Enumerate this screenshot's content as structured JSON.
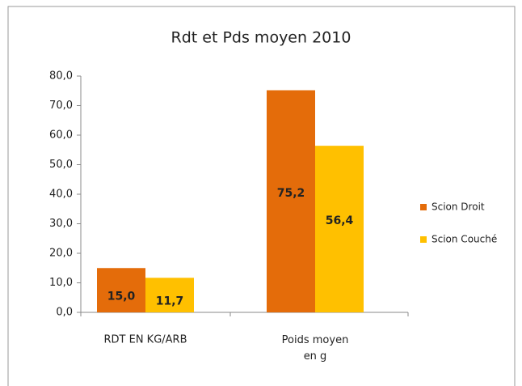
{
  "chart_data": {
    "type": "bar",
    "title": "Rdt et Pds moyen 2010",
    "categories": [
      "RDT EN KG/ARB",
      "Poids moyen en g"
    ],
    "series": [
      {
        "name": "Scion Droit",
        "color": "#e46c0a",
        "values": [
          15.0,
          75.2
        ],
        "value_labels": [
          "15,0",
          "75,2"
        ]
      },
      {
        "name": "Scion Couché",
        "color": "#ffc000",
        "values": [
          11.7,
          56.4
        ],
        "value_labels": [
          "11,7",
          "56,4"
        ]
      }
    ],
    "ylim": [
      0,
      80
    ],
    "yticks": [
      {
        "value": 0,
        "label": "0,0"
      },
      {
        "value": 10,
        "label": "10,0"
      },
      {
        "value": 20,
        "label": "20,0"
      },
      {
        "value": 30,
        "label": "30,0"
      },
      {
        "value": 40,
        "label": "40,0"
      },
      {
        "value": 50,
        "label": "50,0"
      },
      {
        "value": 60,
        "label": "60,0"
      },
      {
        "value": 70,
        "label": "70,0"
      },
      {
        "value": 80,
        "label": "80,0"
      }
    ],
    "grid": false,
    "legend": "right"
  }
}
